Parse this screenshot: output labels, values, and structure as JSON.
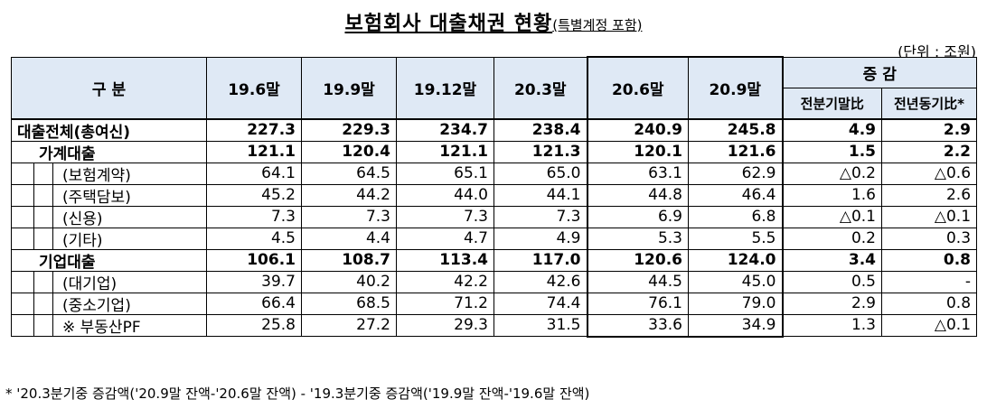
{
  "title": "보험회사 대출채권 현황",
  "subtitle": "(특별계정 포함)",
  "unit": "(단위 : 조원)",
  "headers": {
    "category": "구 분",
    "periods": [
      "19.6말",
      "19.9말",
      "19.12말",
      "20.3말",
      "20.6말",
      "20.9말"
    ],
    "change": "증 감",
    "change_qoq": "전분기말比",
    "change_yoy": "전년동기比*"
  },
  "rows": [
    {
      "label": "대출전체(총여신)",
      "values": [
        "227.3",
        "229.3",
        "234.7",
        "238.4",
        "240.9",
        "245.8",
        "4.9",
        "2.9"
      ]
    },
    {
      "label": "가계대출",
      "values": [
        "121.1",
        "120.4",
        "121.1",
        "121.3",
        "120.1",
        "121.6",
        "1.5",
        "2.2"
      ]
    },
    {
      "label": "(보험계약)",
      "values": [
        "64.1",
        "64.5",
        "65.1",
        "65.0",
        "63.1",
        "62.9",
        "△0.2",
        "△0.6"
      ]
    },
    {
      "label": "(주택담보)",
      "values": [
        "45.2",
        "44.2",
        "44.0",
        "44.1",
        "44.8",
        "46.4",
        "1.6",
        "2.6"
      ]
    },
    {
      "label": "(신용)",
      "values": [
        "7.3",
        "7.3",
        "7.3",
        "7.3",
        "6.9",
        "6.8",
        "△0.1",
        "△0.1"
      ]
    },
    {
      "label": "(기타)",
      "values": [
        "4.5",
        "4.4",
        "4.7",
        "4.9",
        "5.3",
        "5.5",
        "0.2",
        "0.3"
      ]
    },
    {
      "label": "기업대출",
      "values": [
        "106.1",
        "108.7",
        "113.4",
        "117.0",
        "120.6",
        "124.0",
        "3.4",
        "0.8"
      ]
    },
    {
      "label": "(대기업)",
      "values": [
        "39.7",
        "40.2",
        "42.2",
        "42.6",
        "44.5",
        "45.0",
        "0.5",
        "-"
      ]
    },
    {
      "label": "(중소기업)",
      "values": [
        "66.4",
        "68.5",
        "71.2",
        "74.4",
        "76.1",
        "79.0",
        "2.9",
        "0.8"
      ]
    },
    {
      "label": "※ 부동산PF",
      "values": [
        "25.8",
        "27.2",
        "29.3",
        "31.5",
        "33.6",
        "34.9",
        "1.3",
        "△0.1"
      ]
    }
  ],
  "footnote": "* '20.3분기중 증감액('20.9말 잔액-'20.6말 잔액) - '19.3분기중 증감액('19.9말 잔액-'19.6말 잔액)"
}
